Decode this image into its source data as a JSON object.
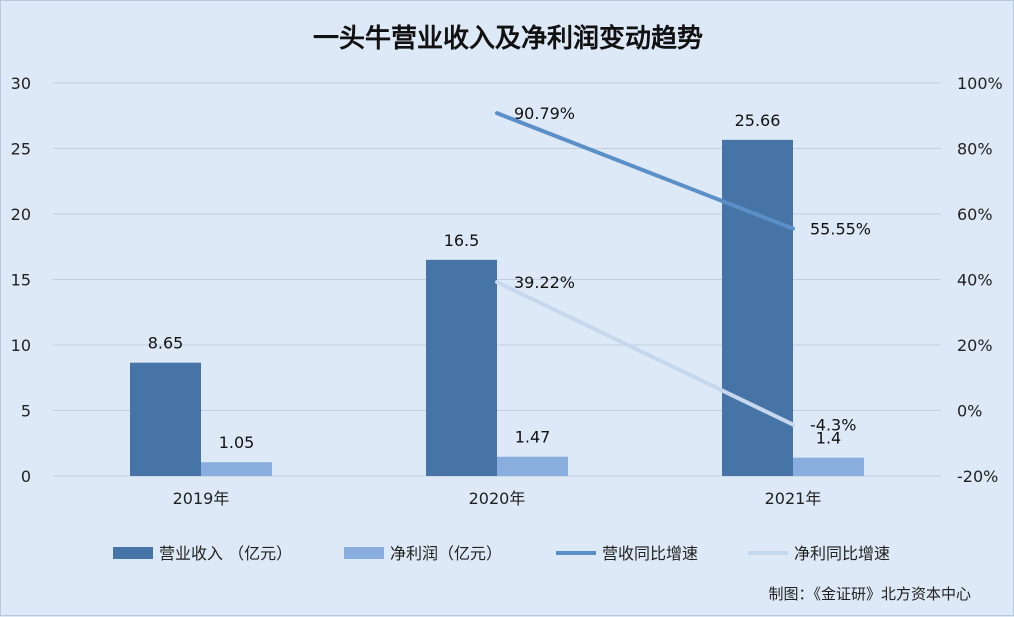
{
  "chart_data": {
    "type": "bar",
    "title": "一头牛营业收入及净利润变动趋势",
    "categories": [
      "2019年",
      "2020年",
      "2021年"
    ],
    "y_left": {
      "min": 0,
      "max": 30,
      "ticks": [
        "0",
        "5",
        "10",
        "15",
        "20",
        "25",
        "30"
      ]
    },
    "y_right": {
      "min": -20,
      "max": 100,
      "ticks": [
        "-20%",
        "0%",
        "20%",
        "40%",
        "60%",
        "80%",
        "100%"
      ]
    },
    "bar_series": [
      {
        "name": "营业收入 （亿元）",
        "values": [
          8.65,
          16.5,
          25.66
        ],
        "labels": [
          "8.65",
          "16.5",
          "25.66"
        ],
        "color": "#4674a7"
      },
      {
        "name": "净利润（亿元）",
        "values": [
          1.05,
          1.47,
          1.4
        ],
        "labels": [
          "1.05",
          "1.47",
          "1.4"
        ],
        "color": "#89aedd"
      }
    ],
    "line_series": [
      {
        "name": "营收同比增速",
        "categories": [
          "2020年",
          "2021年"
        ],
        "values": [
          90.79,
          55.55
        ],
        "labels": [
          "90.79%",
          "55.55%"
        ],
        "color": "#5a8fc8"
      },
      {
        "name": "净利同比增速",
        "categories": [
          "2020年",
          "2021年"
        ],
        "values": [
          39.22,
          -4.3
        ],
        "labels": [
          "39.22%",
          "-4.3%"
        ],
        "color": "#c6d8ee"
      }
    ],
    "grid": true,
    "legend_position": "bottom"
  },
  "credit": "制图：《金证研》北方资本中心",
  "colors": {
    "background": "#dde9f6",
    "gridline": "#c3cfdd"
  }
}
